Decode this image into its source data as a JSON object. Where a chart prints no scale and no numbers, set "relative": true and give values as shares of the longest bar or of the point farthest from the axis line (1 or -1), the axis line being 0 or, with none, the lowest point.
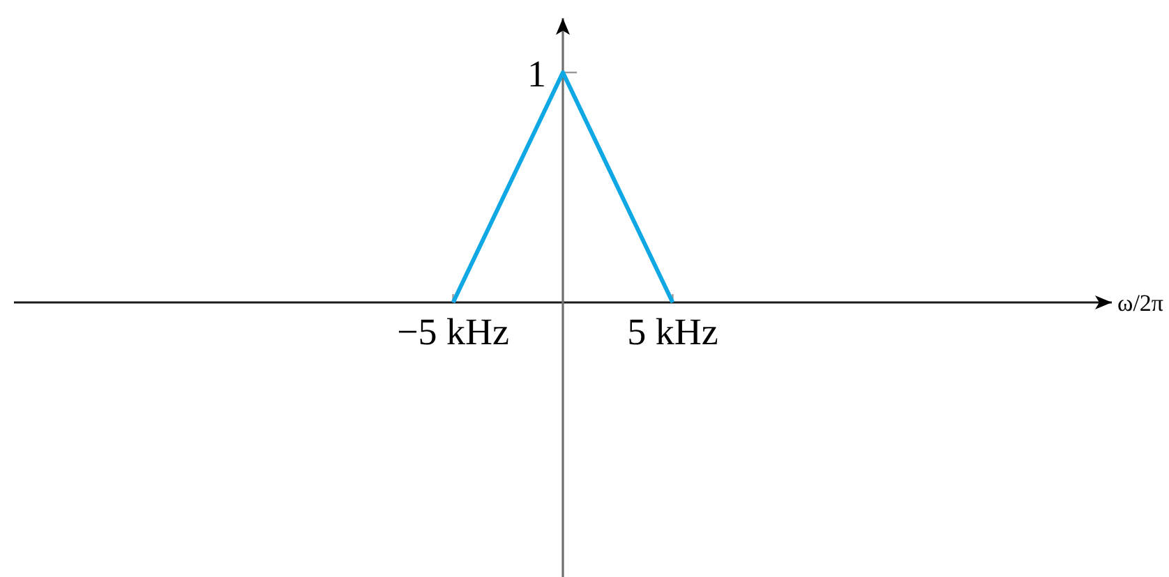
{
  "chart_data": {
    "type": "line",
    "xlabel": "ω/2π",
    "relative": true,
    "x": [
      -5,
      0,
      5
    ],
    "series": [
      {
        "color": "#10a8e4",
        "values": [
          0,
          1,
          0
        ]
      }
    ],
    "xlim": [
      -25,
      25
    ],
    "xticks": [
      {
        "value": -5,
        "label": "−5 kHz"
      },
      {
        "value": 5,
        "label": "5 kHz"
      }
    ],
    "annotations": [
      {
        "text": "1",
        "x": 0,
        "y": 1
      }
    ]
  }
}
